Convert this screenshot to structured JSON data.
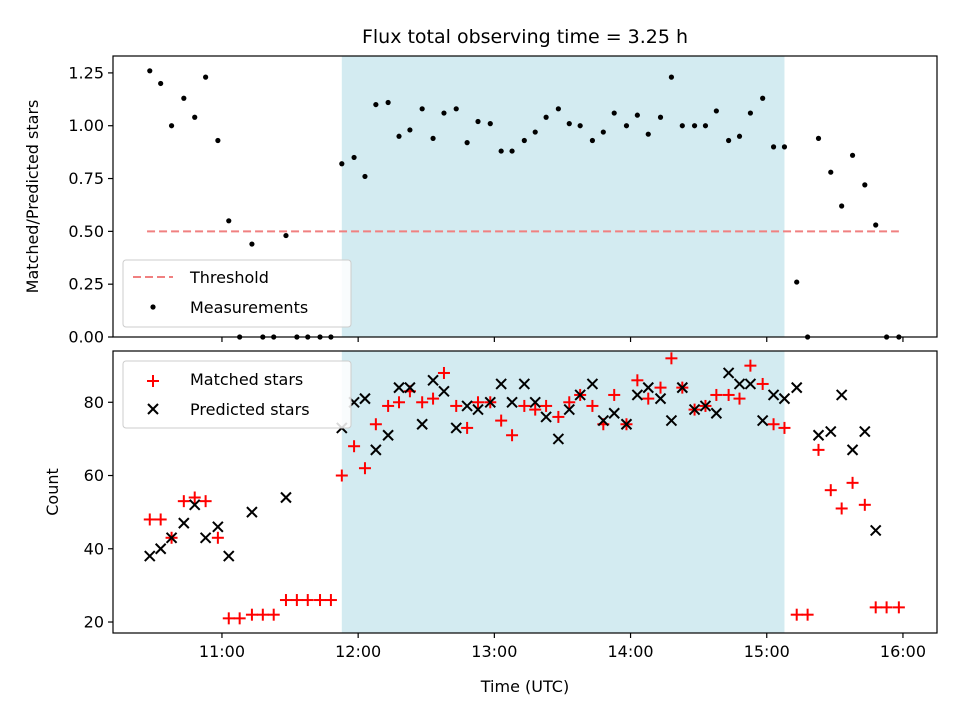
{
  "chart_data": [
    {
      "type": "scatter",
      "title": "Flux total observing time = 3.25 h",
      "xlabel": "",
      "ylabel": "Matched/Predicted stars",
      "ylim": [
        0,
        1.33
      ],
      "yticks": [
        "0.00",
        "0.25",
        "0.50",
        "0.75",
        "1.00",
        "1.25"
      ],
      "ytick_values": [
        0,
        0.25,
        0.5,
        0.75,
        1.0,
        1.25
      ],
      "x_unit": "hours (UTC)",
      "xlim": [
        10.2,
        16.25
      ],
      "shaded_span": [
        11.88,
        15.13
      ],
      "shade_color": "#d3ebf1",
      "threshold": {
        "name": "Threshold",
        "value": 0.5,
        "x": [
          10.45,
          15.97
        ],
        "color": "#f08080",
        "style": "dashed"
      },
      "legend": {
        "placement": "lower-left",
        "entries": [
          "Threshold",
          "Measurements"
        ]
      },
      "series": [
        {
          "name": "Measurements",
          "color": "#000000",
          "marker": "dot",
          "x": [
            10.47,
            10.55,
            10.63,
            10.72,
            10.8,
            10.88,
            10.97,
            11.05,
            11.13,
            11.22,
            11.3,
            11.38,
            11.47,
            11.55,
            11.63,
            11.72,
            11.8,
            11.88,
            11.97,
            12.05,
            12.13,
            12.22,
            12.3,
            12.38,
            12.47,
            12.55,
            12.63,
            12.72,
            12.8,
            12.88,
            12.97,
            13.05,
            13.13,
            13.22,
            13.3,
            13.38,
            13.47,
            13.55,
            13.63,
            13.72,
            13.8,
            13.88,
            13.97,
            14.05,
            14.13,
            14.22,
            14.3,
            14.38,
            14.47,
            14.55,
            14.63,
            14.72,
            14.8,
            14.88,
            14.97,
            15.05,
            15.13,
            15.22,
            15.3,
            15.38,
            15.47,
            15.55,
            15.63,
            15.72,
            15.8,
            15.88,
            15.97
          ],
          "y": [
            1.26,
            1.2,
            1.0,
            1.13,
            1.04,
            1.23,
            0.93,
            0.55,
            0.0,
            0.44,
            0.0,
            0.0,
            0.48,
            0.0,
            0.0,
            0.0,
            0.0,
            0.82,
            0.85,
            0.76,
            1.1,
            1.11,
            0.95,
            0.98,
            1.08,
            0.94,
            1.06,
            1.08,
            0.92,
            1.02,
            1.01,
            0.88,
            0.88,
            0.93,
            0.97,
            1.04,
            1.08,
            1.01,
            1.0,
            0.93,
            0.97,
            1.06,
            1.0,
            1.05,
            0.96,
            1.04,
            1.23,
            1.0,
            1.0,
            1.0,
            1.07,
            0.93,
            0.95,
            1.06,
            1.13,
            0.9,
            0.9,
            0.26,
            0.0,
            0.94,
            0.78,
            0.62,
            0.86,
            0.72,
            0.53,
            0.0,
            0.0
          ]
        }
      ]
    },
    {
      "type": "scatter",
      "title": "",
      "xlabel": "Time (UTC)",
      "ylabel": "Count",
      "ylim": [
        17,
        94
      ],
      "yticks": [
        "20",
        "40",
        "60",
        "80"
      ],
      "ytick_values": [
        20,
        40,
        60,
        80
      ],
      "x_unit": "hours (UTC)",
      "xlim": [
        10.2,
        16.25
      ],
      "xticks": [
        "11:00",
        "12:00",
        "13:00",
        "14:00",
        "15:00",
        "16:00"
      ],
      "xtick_values": [
        11,
        12,
        13,
        14,
        15,
        16
      ],
      "shaded_span": [
        11.88,
        15.13
      ],
      "shade_color": "#d3ebf1",
      "legend": {
        "placement": "upper-left",
        "entries": [
          "Matched stars",
          "Predicted stars"
        ]
      },
      "series": [
        {
          "name": "Matched stars",
          "color": "#ff0000",
          "marker": "plus",
          "x": [
            10.47,
            10.55,
            10.63,
            10.72,
            10.8,
            10.88,
            10.97,
            11.05,
            11.13,
            11.22,
            11.3,
            11.38,
            11.47,
            11.55,
            11.63,
            11.72,
            11.8,
            11.88,
            11.97,
            12.05,
            12.13,
            12.22,
            12.3,
            12.38,
            12.47,
            12.55,
            12.63,
            12.72,
            12.8,
            12.88,
            12.97,
            13.05,
            13.13,
            13.22,
            13.3,
            13.38,
            13.47,
            13.55,
            13.63,
            13.72,
            13.8,
            13.88,
            13.97,
            14.05,
            14.13,
            14.22,
            14.3,
            14.38,
            14.47,
            14.55,
            14.63,
            14.72,
            14.8,
            14.88,
            14.97,
            15.05,
            15.13,
            15.22,
            15.3,
            15.38,
            15.47,
            15.55,
            15.63,
            15.72,
            15.8,
            15.88,
            15.97
          ],
          "y": [
            48,
            48,
            43,
            53,
            54,
            53,
            43,
            21,
            21,
            22,
            22,
            22,
            26,
            26,
            26,
            26,
            26,
            60,
            68,
            62,
            74,
            79,
            80,
            83,
            80,
            81,
            88,
            79,
            73,
            80,
            80,
            75,
            71,
            79,
            78,
            79,
            76,
            80,
            82,
            79,
            74,
            82,
            74,
            86,
            81,
            84,
            92,
            84,
            78,
            79,
            82,
            82,
            81,
            90,
            85,
            74,
            73,
            22,
            22,
            67,
            56,
            51,
            58,
            52,
            24,
            24,
            24
          ]
        },
        {
          "name": "Predicted stars",
          "color": "#000000",
          "marker": "x",
          "x": [
            10.47,
            10.55,
            10.63,
            10.72,
            10.8,
            10.88,
            10.97,
            11.05,
            11.22,
            11.47,
            11.88,
            11.97,
            12.05,
            12.13,
            12.22,
            12.3,
            12.38,
            12.47,
            12.55,
            12.63,
            12.72,
            12.8,
            12.88,
            12.97,
            13.05,
            13.13,
            13.22,
            13.3,
            13.38,
            13.47,
            13.55,
            13.63,
            13.72,
            13.8,
            13.88,
            13.97,
            14.05,
            14.13,
            14.22,
            14.3,
            14.38,
            14.47,
            14.55,
            14.63,
            14.72,
            14.8,
            14.88,
            14.97,
            15.05,
            15.13,
            15.22,
            15.38,
            15.47,
            15.55,
            15.63,
            15.72,
            15.8
          ],
          "y": [
            38,
            40,
            43,
            47,
            52,
            43,
            46,
            38,
            50,
            54,
            73,
            80,
            81,
            67,
            71,
            84,
            84,
            74,
            86,
            83,
            73,
            79,
            78,
            80,
            85,
            80,
            85,
            80,
            76,
            70,
            78,
            82,
            85,
            75,
            77,
            74,
            82,
            84,
            81,
            75,
            84,
            78,
            79,
            77,
            88,
            85,
            85,
            75,
            82,
            81,
            84,
            71,
            72,
            82,
            67,
            72,
            45
          ]
        }
      ]
    }
  ]
}
